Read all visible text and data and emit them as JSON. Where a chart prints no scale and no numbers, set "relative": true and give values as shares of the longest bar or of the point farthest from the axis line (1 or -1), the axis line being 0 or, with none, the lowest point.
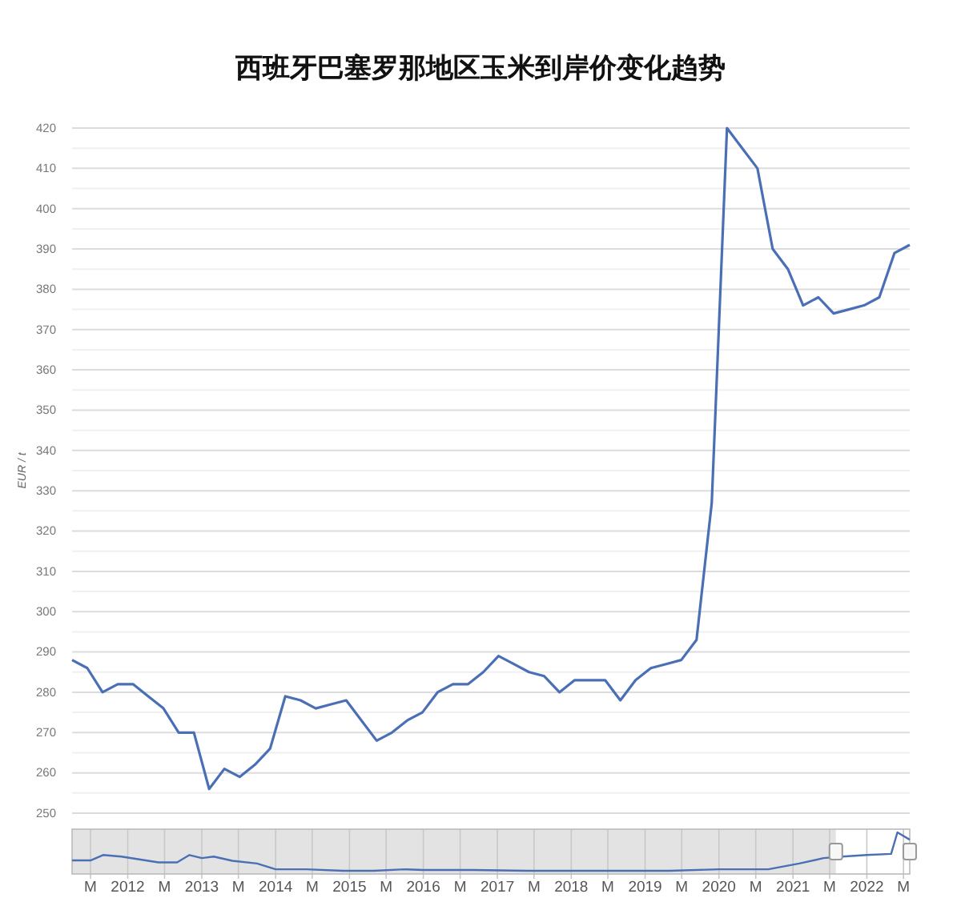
{
  "chart_data": [
    {
      "type": "line",
      "title": "西班牙巴塞罗那地区玉米到岸价变化趋势",
      "ylabel": "EUR / t",
      "categories": [
        null,
        null,
        null,
        null,
        null,
        null,
        null,
        null,
        null,
        null,
        null,
        null,
        null,
        null,
        null,
        null,
        null,
        null,
        null,
        null,
        null,
        null,
        null,
        null,
        null,
        null,
        null,
        null,
        null,
        null,
        null,
        null,
        null,
        null,
        null,
        null,
        null,
        null,
        null,
        null,
        null,
        null,
        null,
        null,
        null,
        null,
        null,
        null,
        null,
        null,
        null,
        null,
        null,
        null,
        null,
        null
      ],
      "series": [
        {
          "color": "#4a6fb5",
          "values": [
            288,
            286,
            280,
            282,
            282,
            279,
            276,
            270,
            270,
            256,
            261,
            259,
            262,
            266,
            279,
            278,
            276,
            277,
            278,
            273,
            268,
            270,
            273,
            275,
            280,
            282,
            282,
            285,
            289,
            287,
            285,
            284,
            280,
            283,
            283,
            283,
            278,
            283,
            286,
            287,
            288,
            293,
            327,
            420,
            415,
            410,
            390,
            385,
            376,
            378,
            374,
            375,
            376,
            378,
            389,
            391
          ]
        }
      ],
      "ylim": [
        250,
        420
      ],
      "yticks": [
        250,
        {
          "value": 255,
          "label": null
        },
        260,
        {
          "value": 265,
          "label": null
        },
        270,
        {
          "value": 275,
          "label": null
        },
        280,
        {
          "value": 285,
          "label": null
        },
        290,
        {
          "value": 295,
          "label": null
        },
        300,
        {
          "value": 305,
          "label": null
        },
        310,
        {
          "value": 315,
          "label": null
        },
        320,
        {
          "value": 325,
          "label": null
        },
        330,
        {
          "value": 335,
          "label": null
        },
        340,
        {
          "value": 345,
          "label": null
        },
        350,
        {
          "value": 355,
          "label": null
        },
        360,
        {
          "value": 365,
          "label": null
        },
        370,
        {
          "value": 375,
          "label": null
        },
        380,
        {
          "value": 385,
          "label": null
        },
        390,
        {
          "value": 395,
          "label": null
        },
        400,
        {
          "value": 405,
          "label": null
        },
        410,
        {
          "value": 415,
          "label": null
        },
        420
      ],
      "grid": "y"
    },
    {
      "type": "line",
      "relative": true,
      "x": [
        "2011-04",
        "2011-07",
        "2011-09",
        "2011-12",
        "2012-06",
        "2012-09",
        "2012-11",
        "2013-01",
        "2013-03",
        "2013-06",
        "2013-10",
        "2014-01",
        "2014-06",
        "2014-12",
        "2015-05",
        "2015-10",
        "2016-01",
        "2016-09",
        "2017-06",
        "2018-07",
        "2019-05",
        "2020-01",
        "2020-09",
        "2021-02",
        "2021-06",
        "2021-09",
        "2022-01",
        "2022-05",
        "2022-06",
        "2022-08"
      ],
      "series": [
        {
          "color": "#4a6fb5",
          "values": [
            0.27,
            0.27,
            0.41,
            0.37,
            0.22,
            0.22,
            0.41,
            0.33,
            0.37,
            0.26,
            0.19,
            0.04,
            0.04,
            0,
            0,
            0.04,
            0.02,
            0.02,
            0,
            0,
            0,
            0.04,
            0.04,
            0.19,
            0.33,
            0.37,
            0.41,
            0.44,
            1,
            0.81
          ]
        }
      ],
      "xlim": [
        "2011-04",
        "2022-08"
      ],
      "xticks": [
        {
          "value": "2011-07",
          "label": "M"
        },
        {
          "value": "2012-01",
          "label": "2012"
        },
        {
          "value": "2012-07",
          "label": "M"
        },
        {
          "value": "2013-01",
          "label": "2013"
        },
        {
          "value": "2013-07",
          "label": "M"
        },
        {
          "value": "2014-01",
          "label": "2014"
        },
        {
          "value": "2014-07",
          "label": "M"
        },
        {
          "value": "2015-01",
          "label": "2015"
        },
        {
          "value": "2015-07",
          "label": "M"
        },
        {
          "value": "2016-01",
          "label": "2016"
        },
        {
          "value": "2016-07",
          "label": "M"
        },
        {
          "value": "2017-01",
          "label": "2017"
        },
        {
          "value": "2017-07",
          "label": "M"
        },
        {
          "value": "2018-01",
          "label": "2018"
        },
        {
          "value": "2018-07",
          "label": "M"
        },
        {
          "value": "2019-01",
          "label": "2019"
        },
        {
          "value": "2019-07",
          "label": "M"
        },
        {
          "value": "2020-01",
          "label": "2020"
        },
        {
          "value": "2020-07",
          "label": "M"
        },
        {
          "value": "2021-01",
          "label": "2021"
        },
        {
          "value": "2021-07",
          "label": "M"
        },
        {
          "value": "2022-01",
          "label": "2022"
        },
        {
          "value": "2022-07",
          "label": "M"
        }
      ],
      "grid": "x",
      "bands": [
        {
          "axis": "x",
          "from": "2011-04",
          "to": "2021-08",
          "color": "#e3e3e3"
        }
      ]
    }
  ]
}
